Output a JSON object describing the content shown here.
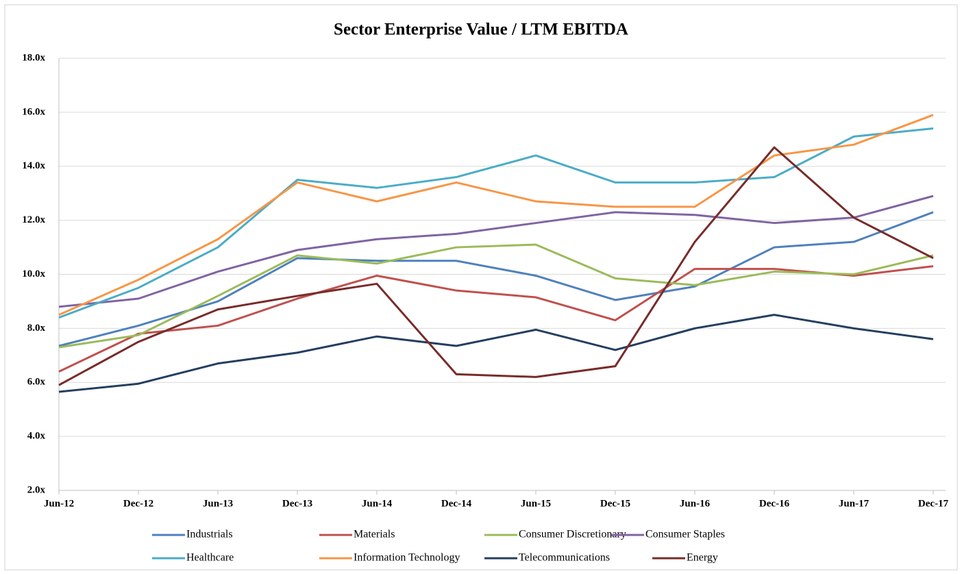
{
  "chart_data": {
    "type": "line",
    "title": "Sector Enterprise Value / LTM EBITDA",
    "categories": [
      "Jun-12",
      "Dec-12",
      "Jun-13",
      "Dec-13",
      "Jun-14",
      "Dec-14",
      "Jun-15",
      "Dec-15",
      "Jun-16",
      "Dec-16",
      "Jun-17",
      "Dec-17"
    ],
    "series": [
      {
        "name": "Industrials",
        "color": "#4f81bd",
        "values": [
          7.35,
          8.1,
          9.0,
          10.6,
          10.5,
          10.5,
          9.95,
          9.05,
          9.55,
          11.0,
          11.2,
          12.3
        ]
      },
      {
        "name": "Materials",
        "color": "#c0504d",
        "values": [
          6.4,
          7.8,
          8.1,
          9.1,
          9.95,
          9.4,
          9.15,
          8.3,
          10.2,
          10.2,
          9.95,
          10.3
        ]
      },
      {
        "name": "Consumer Discretionary",
        "color": "#9bbb59",
        "values": [
          7.3,
          7.75,
          9.2,
          10.7,
          10.4,
          11.0,
          11.1,
          9.85,
          9.6,
          10.1,
          10.0,
          10.7
        ]
      },
      {
        "name": "Consumer Staples",
        "color": "#8064a2",
        "values": [
          8.8,
          9.1,
          10.1,
          10.9,
          11.3,
          11.5,
          11.9,
          12.3,
          12.2,
          11.9,
          12.1,
          12.9
        ]
      },
      {
        "name": "Healthcare",
        "color": "#4bacc6",
        "values": [
          8.4,
          9.5,
          11.0,
          13.5,
          13.2,
          13.6,
          14.4,
          13.4,
          13.4,
          13.6,
          15.1,
          15.4
        ]
      },
      {
        "name": "Information Technology",
        "color": "#f79646",
        "values": [
          8.5,
          9.8,
          11.3,
          13.4,
          12.7,
          13.4,
          12.7,
          12.5,
          12.5,
          14.4,
          14.8,
          15.9
        ]
      },
      {
        "name": "Telecommunications",
        "color": "#243f60",
        "values": [
          5.65,
          5.95,
          6.7,
          7.1,
          7.7,
          7.35,
          7.95,
          7.2,
          8.0,
          8.5,
          8.0,
          7.6
        ]
      },
      {
        "name": "Energy",
        "color": "#772c2a",
        "values": [
          5.9,
          7.5,
          8.7,
          9.2,
          9.65,
          6.3,
          6.2,
          6.6,
          11.2,
          14.7,
          12.1,
          10.6
        ]
      }
    ],
    "ylim": [
      2,
      18
    ],
    "yticks": [
      {
        "value": 2,
        "label": "2.0x"
      },
      {
        "value": 4,
        "label": "4.0x"
      },
      {
        "value": 6,
        "label": "6.0x"
      },
      {
        "value": 8,
        "label": "8.0x"
      },
      {
        "value": 10,
        "label": "10.0x"
      },
      {
        "value": 12,
        "label": "12.0x"
      },
      {
        "value": 14,
        "label": "14.0x"
      },
      {
        "value": 16,
        "label": "16.0x"
      },
      {
        "value": 18,
        "label": "18.0x"
      }
    ],
    "grid": true
  }
}
